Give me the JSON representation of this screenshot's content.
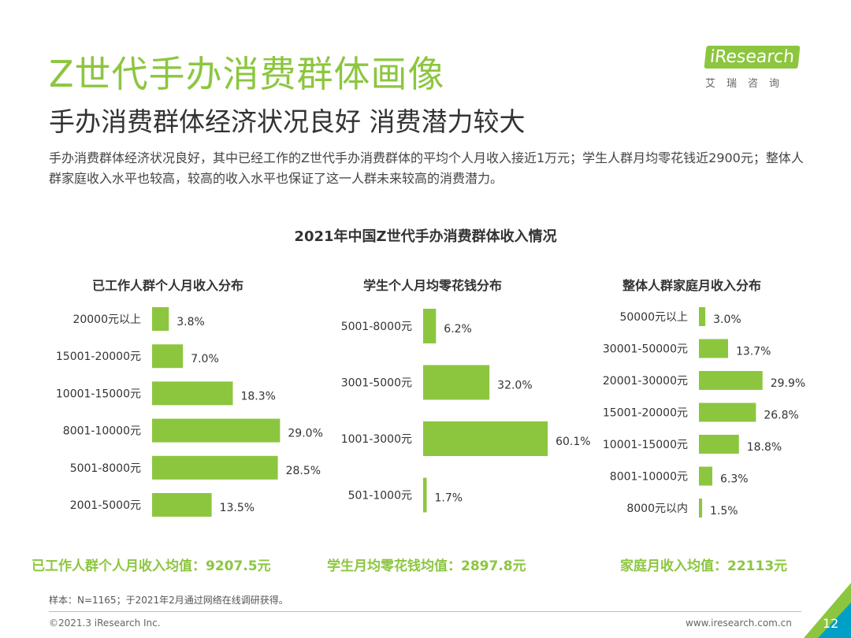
{
  "header": {
    "title": "Z世代手办消费群体画像",
    "subtitle": "手办消费群体经济状况良好 消费潜力较大",
    "description": "手办消费群体经济状况良好，其中已经工作的Z世代手办消费群体的平均个人月收入接近1万元；学生人群月均零花钱近2900元；整体人群家庭收入水平也较高，较高的收入水平也保证了这一人群未来较高的消费潜力。"
  },
  "logo": {
    "brand": "iResearch",
    "sub": "艾瑞咨询"
  },
  "colors": {
    "accent": "#8cc63f",
    "bar": "#8cc63f"
  },
  "chart_title": "2021年中国Z世代手办消费群体收入情况",
  "chart_data": [
    {
      "type": "bar",
      "orientation": "horizontal",
      "title": "已工作人群个人月收入分布",
      "categories": [
        "20000元以上",
        "15001-20000元",
        "10001-15000元",
        "8001-10000元",
        "5001-8000元",
        "2001-5000元"
      ],
      "values": [
        3.8,
        7.0,
        18.3,
        29.0,
        28.5,
        13.5
      ],
      "labels": [
        "3.8%",
        "7.0%",
        "18.3%",
        "29.0%",
        "28.5%",
        "13.5%"
      ],
      "unit": "%"
    },
    {
      "type": "bar",
      "orientation": "horizontal",
      "title": "学生个人月均零花钱分布",
      "categories": [
        "5001-8000元",
        "3001-5000元",
        "1001-3000元",
        "501-1000元"
      ],
      "values": [
        6.2,
        32.0,
        60.1,
        1.7
      ],
      "labels": [
        "6.2%",
        "32.0%",
        "60.1%",
        "1.7%"
      ],
      "unit": "%"
    },
    {
      "type": "bar",
      "orientation": "horizontal",
      "title": "整体人群家庭月收入分布",
      "categories": [
        "50000元以上",
        "30001-50000元",
        "20001-30000元",
        "15001-20000元",
        "10001-15000元",
        "8001-10000元",
        "8000元以内"
      ],
      "values": [
        3.0,
        13.7,
        29.9,
        26.8,
        18.8,
        6.3,
        1.5
      ],
      "labels": [
        "3.0%",
        "13.7%",
        "29.9%",
        "26.8%",
        "18.8%",
        "6.3%",
        "1.5%"
      ],
      "unit": "%"
    }
  ],
  "averages": [
    "已工作人群个人月收入均值：9207.5元",
    "学生月均零花钱均值：2897.8元",
    "家庭月收入均值：22113元"
  ],
  "footer": {
    "note": "样本：N=1165；于2021年2月通过网络在线调研获得。",
    "copyright": "©2021.3 iResearch Inc.",
    "url": "www.iresearch.com.cn",
    "page": "12"
  }
}
